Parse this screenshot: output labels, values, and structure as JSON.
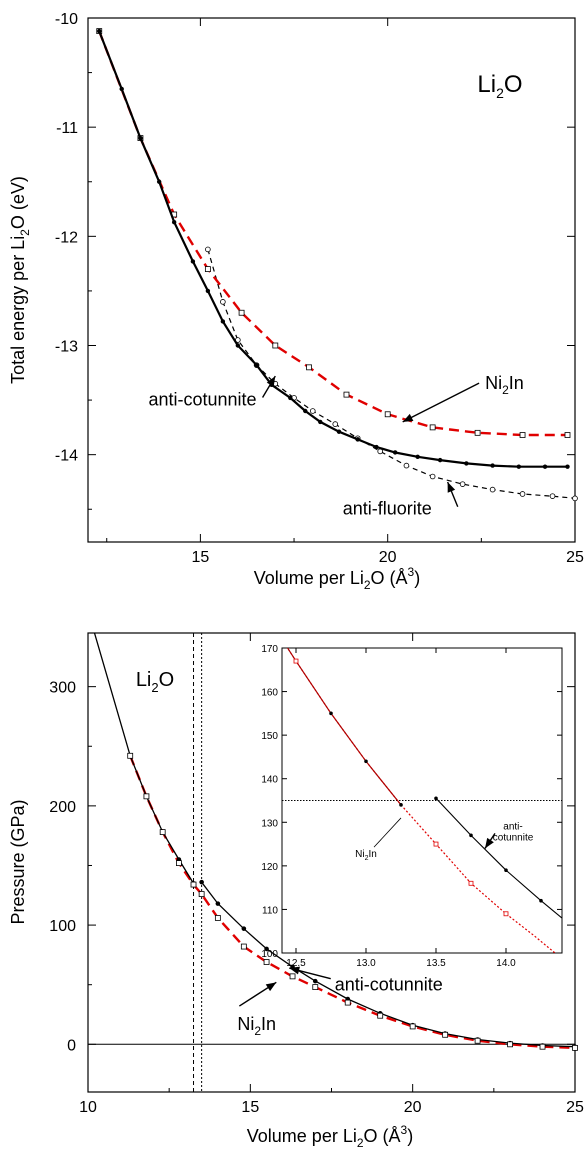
{
  "chart_data": [
    {
      "type": "line",
      "xlabel": "Volume per Li2O  (Å3)",
      "ylabel": "Total energy per Li2O  (eV)",
      "xlim": [
        12,
        25
      ],
      "ylim": [
        -14.8,
        -10
      ],
      "x_ticks": [
        "15",
        "20",
        "25"
      ],
      "y_ticks": [
        "-10",
        "-11",
        "-12",
        "-13",
        "-14"
      ],
      "compound_label": "Li2O",
      "colors": {
        "anti_cotunnite": "#000000",
        "ni2in": "#e00000",
        "anti_fluorite": "#000000"
      },
      "series": [
        {
          "name": "anti-cotunnite",
          "x": [
            12.3,
            12.9,
            13.4,
            13.9,
            14.3,
            14.8,
            15.2,
            15.6,
            16.0,
            16.5,
            16.9,
            17.4,
            17.8,
            18.2,
            18.7,
            19.2,
            19.7,
            20.2,
            20.8,
            21.4,
            22.1,
            22.8,
            23.5,
            24.2,
            24.8
          ],
          "y": [
            -10.12,
            -10.65,
            -11.1,
            -11.5,
            -11.87,
            -12.23,
            -12.5,
            -12.78,
            -13.0,
            -13.18,
            -13.36,
            -13.48,
            -13.6,
            -13.7,
            -13.79,
            -13.86,
            -13.93,
            -13.98,
            -14.02,
            -14.05,
            -14.08,
            -14.1,
            -14.11,
            -14.11,
            -14.11
          ]
        },
        {
          "name": "Ni2In",
          "x": [
            12.3,
            13.4,
            14.3,
            15.2,
            16.1,
            17.0,
            17.9,
            18.9,
            20.0,
            21.2,
            22.4,
            23.6,
            24.8
          ],
          "y": [
            -10.12,
            -11.1,
            -11.8,
            -12.3,
            -12.7,
            -13.0,
            -13.2,
            -13.45,
            -13.63,
            -13.75,
            -13.8,
            -13.82,
            -13.82
          ]
        },
        {
          "name": "anti-fluorite",
          "x": [
            15.2,
            15.6,
            16.0,
            16.5,
            17.0,
            17.5,
            18.0,
            18.6,
            19.2,
            19.8,
            20.5,
            21.2,
            22.0,
            22.8,
            23.6,
            24.4,
            25.0
          ],
          "y": [
            -12.12,
            -12.6,
            -12.95,
            -13.18,
            -13.35,
            -13.48,
            -13.6,
            -13.72,
            -13.85,
            -13.97,
            -14.1,
            -14.2,
            -14.27,
            -14.32,
            -14.36,
            -14.38,
            -14.4
          ]
        }
      ],
      "annotations": [
        {
          "text": "anti-cotunnite",
          "x": 16.5,
          "y": -13.55,
          "arrow_to": [
            17.0,
            -13.28
          ]
        },
        {
          "text": "Ni2In",
          "x": 22.6,
          "y": -13.4,
          "arrow_to": [
            20.4,
            -13.7
          ]
        },
        {
          "text": "anti-fluorite",
          "x": 18.8,
          "y": -14.55,
          "arrow_to": [
            21.6,
            -14.25
          ]
        }
      ]
    },
    {
      "type": "line",
      "xlabel": "Volume per Li2O  (Å3)",
      "ylabel": "Pressure  (GPa)",
      "xlim": [
        10,
        25
      ],
      "ylim": [
        -40,
        345
      ],
      "x_ticks": [
        "10",
        "15",
        "20",
        "25"
      ],
      "y_ticks": [
        "0",
        "100",
        "200",
        "300"
      ],
      "compound_label": "Li2O",
      "vlines": [
        13.25,
        13.5
      ],
      "hline": 0,
      "series": [
        {
          "name": "anti-cotunnite",
          "x": [
            10.2,
            11.3,
            11.8,
            12.3,
            12.8,
            13.25,
            13.5,
            14.0,
            14.8,
            15.5,
            16.3,
            17.0,
            18.0,
            19.0,
            20.0,
            21.0,
            22.0,
            23.0,
            24.0,
            25.0
          ],
          "y": [
            345,
            242,
            208,
            178,
            155,
            135,
            136,
            118,
            97,
            80,
            65,
            53,
            38,
            26,
            16,
            9,
            4,
            1,
            -1,
            -2
          ]
        },
        {
          "name": "Ni2In",
          "x": [
            11.3,
            11.8,
            12.3,
            12.8,
            13.25,
            13.5,
            14.0,
            14.8,
            15.5,
            16.3,
            17.0,
            18.0,
            19.0,
            20.0,
            21.0,
            22.0,
            23.0,
            24.0,
            25.0
          ],
          "y": [
            242,
            208,
            178,
            152,
            134,
            126,
            106,
            82,
            69,
            57,
            48,
            35,
            24,
            15,
            8,
            3,
            0,
            -2,
            -3
          ]
        }
      ],
      "annotations": [
        {
          "text": "anti-cotunnite",
          "x": 17.6,
          "y": 50,
          "arrow_to": [
            16.2,
            64
          ]
        },
        {
          "text": "Ni2In",
          "x": 14.6,
          "y": 17,
          "arrow_to": [
            15.8,
            52
          ]
        }
      ],
      "inset": {
        "xlim": [
          12.4,
          14.4
        ],
        "ylim": [
          100,
          170
        ],
        "x_ticks": [
          "12.5",
          "13.0",
          "13.5",
          "14.0"
        ],
        "y_ticks": [
          "100",
          "110",
          "120",
          "130",
          "140",
          "150",
          "160",
          "170"
        ],
        "hline": 135,
        "series": [
          {
            "name": "anti-cotunnite",
            "x": [
              12.4,
              12.5,
              12.75,
              13.0,
              13.25,
              13.5,
              13.75,
              14.0,
              14.25,
              14.4
            ],
            "y": [
              172,
              167,
              155,
              144,
              134,
              135.5,
              127,
              119,
              112,
              108
            ]
          },
          {
            "name": "Ni2In",
            "x": [
              12.4,
              12.5,
              12.75,
              13.0,
              13.25,
              13.5,
              13.75,
              14.0,
              14.2,
              14.35
            ],
            "y": [
              172,
              167,
              155,
              144,
              134,
              125,
              116,
              109,
              104,
              100
            ]
          }
        ],
        "annotations": [
          {
            "text": "Ni2In",
            "x": 13.0,
            "y": 122,
            "arrow_to": [
              13.25,
              131
            ]
          },
          {
            "text": "anti-cotunnite",
            "x": 14.05,
            "y": 127,
            "arrow_to": [
              13.85,
              124
            ]
          }
        ]
      }
    }
  ]
}
